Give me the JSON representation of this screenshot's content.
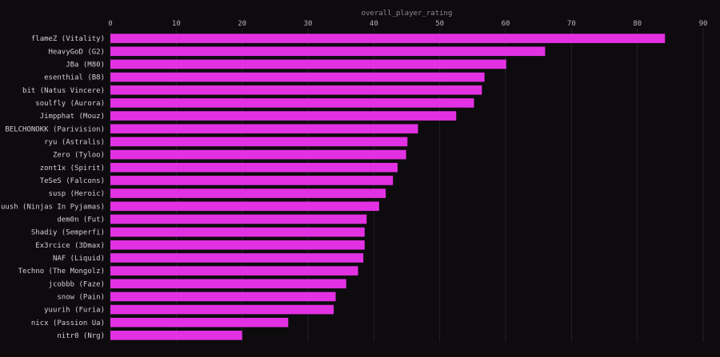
{
  "chart_data": {
    "type": "bar",
    "orientation": "horizontal",
    "title": "",
    "xlabel": "overall_player_rating",
    "ylabel": "",
    "xlim": [
      0,
      90
    ],
    "xticks": [
      "0",
      "10",
      "20",
      "30",
      "40",
      "50",
      "60",
      "70",
      "80",
      "90"
    ],
    "xaxis_position": "top",
    "grid": true,
    "legend": "none",
    "bar_color": "#e231e2",
    "background": "#0d0b0e",
    "categories": [
      "flameZ (Vitality)",
      "HeavyGoD (G2)",
      "JBa (M80)",
      "esenthial (B8)",
      "bit (Natus Vincere)",
      "soulfly (Aurora)",
      "Jimpphat (Mouz)",
      "BELCHONOKK (Parivision)",
      "ryu (Astralis)",
      "Zero (Tyloo)",
      "zont1x (Spirit)",
      "TeSeS (Falcons)",
      "susp (Heroic)",
      "sjuush (Ninjas In Pyjamas)",
      "dem0n (Fut)",
      "Shadiy (Semperfi)",
      "Ex3rcice (3Dmax)",
      "NAF (Liquid)",
      "Techno (The Mongolz)",
      "jcobbb (Faze)",
      "snow (Pain)",
      "yuurih (Furia)",
      "nicx (Passion Ua)",
      "nitr0 (Nrg)"
    ],
    "values": [
      84.2,
      66.0,
      60.1,
      56.8,
      56.4,
      55.2,
      52.5,
      46.7,
      45.1,
      44.9,
      43.6,
      42.9,
      41.8,
      40.8,
      38.9,
      38.6,
      38.6,
      38.4,
      37.6,
      35.8,
      34.2,
      33.9,
      27.0,
      20.0
    ]
  }
}
